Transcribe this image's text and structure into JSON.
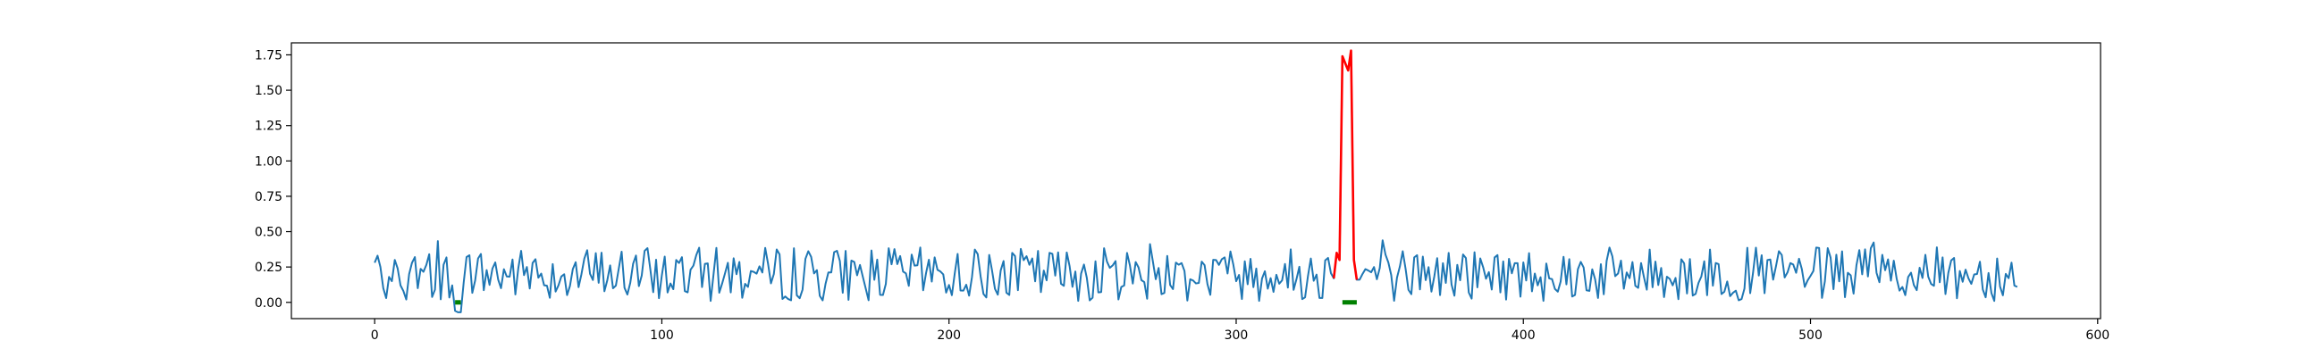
{
  "chart_data": {
    "type": "line",
    "title": "",
    "xlabel": "",
    "ylabel": "",
    "xlim": [
      -29,
      601
    ],
    "ylim": [
      -0.115,
      1.835
    ],
    "grid": false,
    "legend": "none",
    "xticks": [
      0,
      100,
      200,
      300,
      400,
      500,
      600
    ],
    "yticks": [
      0.0,
      0.25,
      0.5,
      0.75,
      1.0,
      1.25,
      1.5,
      1.75
    ],
    "xtick_labels": [
      "0",
      "100",
      "200",
      "300",
      "400",
      "500",
      "600"
    ],
    "ytick_labels": [
      "0.00",
      "0.25",
      "0.50",
      "0.75",
      "1.00",
      "1.25",
      "1.50",
      "1.75"
    ],
    "series": [
      {
        "role": "main-signal",
        "color": "#1f77b4",
        "x_start": 0,
        "x_end": 572,
        "baseline_mean": 0.2,
        "baseline_amplitude": 0.2,
        "values_sample": [
          0.28,
          0.33,
          0.25,
          0.1,
          0.03,
          0.18,
          0.15,
          0.3,
          0.24,
          0.12,
          0.08,
          0.02,
          0.2,
          0.28,
          0.32,
          0.1
        ]
      },
      {
        "role": "dip-segment",
        "color": "#1f77b4",
        "x": [
          27,
          28,
          29,
          30,
          31
        ],
        "y": [
          0.12,
          -0.06,
          -0.07,
          -0.07,
          0.14
        ]
      },
      {
        "role": "anomaly-segment",
        "color": "#ff0000",
        "x": [
          334,
          335,
          336,
          337,
          338,
          339,
          340,
          341,
          342
        ],
        "y": [
          0.17,
          0.35,
          0.3,
          1.74,
          1.69,
          1.64,
          1.78,
          0.3,
          0.16
        ]
      },
      {
        "role": "flag-segment",
        "color": "#008000",
        "x": [
          28,
          30
        ],
        "y": [
          0.0,
          0.0
        ]
      },
      {
        "role": "flag-segment",
        "color": "#008000",
        "x": [
          337,
          342
        ],
        "y": [
          0.0,
          0.0
        ]
      }
    ]
  }
}
